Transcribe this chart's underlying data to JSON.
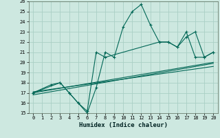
{
  "xlabel": "Humidex (Indice chaleur)",
  "bg_color": "#cde8e0",
  "grid_color": "#aacfc5",
  "line_color": "#006655",
  "xlim": [
    -0.5,
    20.5
  ],
  "ylim": [
    15,
    26
  ],
  "xticks": [
    0,
    1,
    2,
    3,
    4,
    5,
    6,
    7,
    8,
    9,
    10,
    11,
    12,
    13,
    14,
    15,
    16,
    17,
    18,
    19,
    20
  ],
  "yticks": [
    15,
    16,
    17,
    18,
    19,
    20,
    21,
    22,
    23,
    24,
    25,
    26
  ],
  "series1": {
    "x": [
      0,
      2,
      3,
      4,
      5,
      6,
      7,
      8,
      9,
      10,
      11,
      12,
      13,
      14,
      15,
      16,
      17,
      18,
      19,
      20
    ],
    "y": [
      17,
      17.8,
      18,
      17,
      16,
      15,
      17.5,
      21,
      20.5,
      23.5,
      25,
      25.7,
      23.7,
      22,
      22,
      21.5,
      22.5,
      23,
      20.5,
      21
    ]
  },
  "series2": {
    "x": [
      0,
      3,
      4,
      5,
      6,
      7,
      8,
      14,
      15,
      16,
      17,
      18,
      19,
      20
    ],
    "y": [
      17,
      18,
      17,
      16,
      15.2,
      21,
      20.5,
      22,
      22,
      21.5,
      23,
      20.5,
      20.5,
      21
    ]
  },
  "lines": [
    {
      "x": [
        0,
        20
      ],
      "y": [
        17.0,
        20.0
      ]
    },
    {
      "x": [
        0,
        20
      ],
      "y": [
        17.1,
        19.6
      ]
    },
    {
      "x": [
        0,
        20
      ],
      "y": [
        16.8,
        19.9
      ]
    }
  ]
}
